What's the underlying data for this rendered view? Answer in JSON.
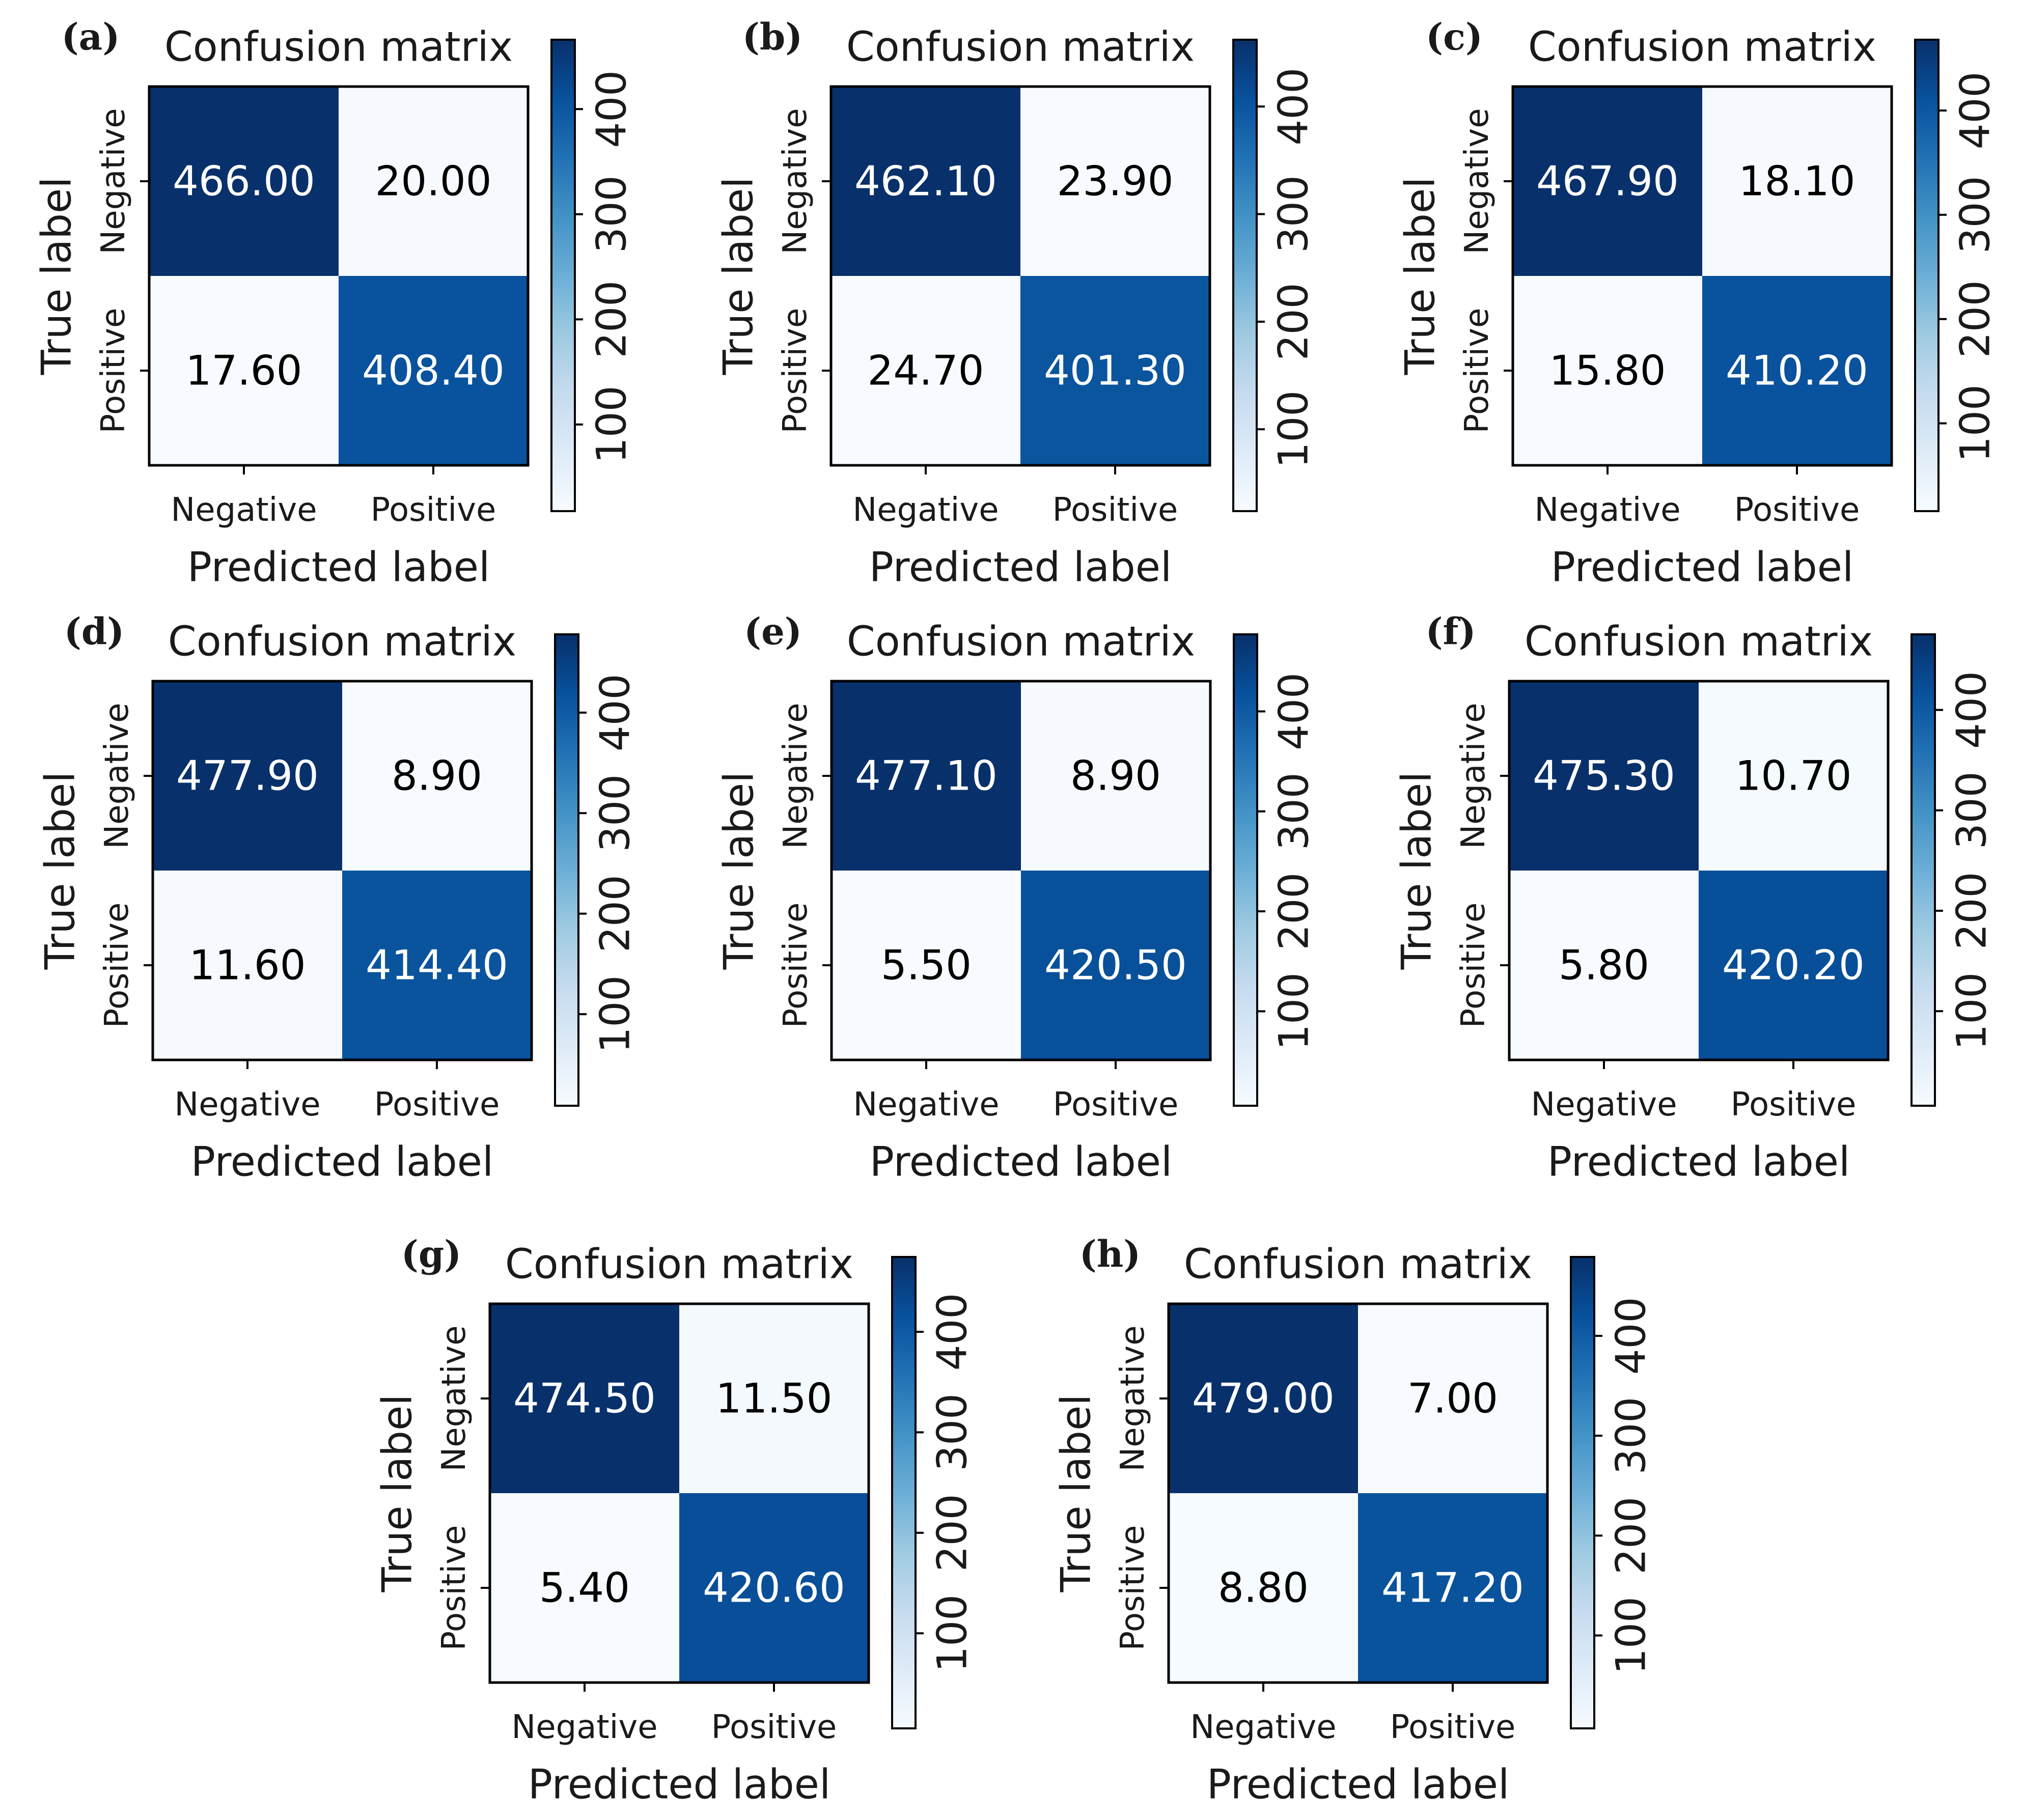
{
  "figure": {
    "colormap": [
      "#f7fbff",
      "#deebf7",
      "#c6dbef",
      "#9ecae1",
      "#6baed6",
      "#4292c6",
      "#2171b5",
      "#08519c",
      "#08306b"
    ]
  },
  "chart_data": [
    {
      "type": "heatmap",
      "panel": "(a)",
      "title": "Confusion matrix",
      "xlabel": "Predicted label",
      "ylabel": "True label",
      "x_categories": [
        "Negative",
        "Positive"
      ],
      "y_categories": [
        "Negative",
        "Positive"
      ],
      "matrix": [
        [
          466.0,
          20.0
        ],
        [
          17.6,
          408.4
        ]
      ],
      "cell_labels": [
        [
          "466.00",
          "20.00"
        ],
        [
          "17.60",
          "408.40"
        ]
      ],
      "colorbar": {
        "ticks": [
          100,
          200,
          300,
          400
        ],
        "tick_labels": [
          "100",
          "200",
          "300",
          "400"
        ],
        "range": [
          17.6,
          466.0
        ]
      }
    },
    {
      "type": "heatmap",
      "panel": "(b)",
      "title": "Confusion matrix",
      "xlabel": "Predicted label",
      "ylabel": "True label",
      "x_categories": [
        "Negative",
        "Positive"
      ],
      "y_categories": [
        "Negative",
        "Positive"
      ],
      "matrix": [
        [
          462.1,
          23.9
        ],
        [
          24.7,
          401.3
        ]
      ],
      "cell_labels": [
        [
          "462.10",
          "23.90"
        ],
        [
          "24.70",
          "401.30"
        ]
      ],
      "colorbar": {
        "ticks": [
          100,
          200,
          300,
          400
        ],
        "tick_labels": [
          "100",
          "200",
          "300",
          "400"
        ],
        "range": [
          23.9,
          462.1
        ]
      }
    },
    {
      "type": "heatmap",
      "panel": "(c)",
      "title": "Confusion matrix",
      "xlabel": "Predicted label",
      "ylabel": "True label",
      "x_categories": [
        "Negative",
        "Positive"
      ],
      "y_categories": [
        "Negative",
        "Positive"
      ],
      "matrix": [
        [
          467.9,
          18.1
        ],
        [
          15.8,
          410.2
        ]
      ],
      "cell_labels": [
        [
          "467.90",
          "18.10"
        ],
        [
          "15.80",
          "410.20"
        ]
      ],
      "colorbar": {
        "ticks": [
          100,
          200,
          300,
          400
        ],
        "tick_labels": [
          "100",
          "200",
          "300",
          "400"
        ],
        "range": [
          15.8,
          467.9
        ]
      }
    },
    {
      "type": "heatmap",
      "panel": "(d)",
      "title": "Confusion matrix",
      "xlabel": "Predicted label",
      "ylabel": "True label",
      "x_categories": [
        "Negative",
        "Positive"
      ],
      "y_categories": [
        "Negative",
        "Positive"
      ],
      "matrix": [
        [
          477.9,
          8.9
        ],
        [
          11.6,
          414.4
        ]
      ],
      "cell_labels": [
        [
          "477.90",
          "8.90"
        ],
        [
          "11.60",
          "414.40"
        ]
      ],
      "colorbar": {
        "ticks": [
          100,
          200,
          300,
          400
        ],
        "tick_labels": [
          "100",
          "200",
          "300",
          "400"
        ],
        "range": [
          8.9,
          477.9
        ]
      }
    },
    {
      "type": "heatmap",
      "panel": "(e)",
      "title": "Confusion matrix",
      "xlabel": "Predicted label",
      "ylabel": "True label",
      "x_categories": [
        "Negative",
        "Positive"
      ],
      "y_categories": [
        "Negative",
        "Positive"
      ],
      "matrix": [
        [
          477.1,
          8.9
        ],
        [
          5.5,
          420.5
        ]
      ],
      "cell_labels": [
        [
          "477.10",
          "8.90"
        ],
        [
          "5.50",
          "420.50"
        ]
      ],
      "colorbar": {
        "ticks": [
          100,
          200,
          300,
          400
        ],
        "tick_labels": [
          "100",
          "200",
          "300",
          "400"
        ],
        "range": [
          5.5,
          477.1
        ]
      }
    },
    {
      "type": "heatmap",
      "panel": "(f)",
      "title": "Confusion matrix",
      "xlabel": "Predicted label",
      "ylabel": "True label",
      "x_categories": [
        "Negative",
        "Positive"
      ],
      "y_categories": [
        "Negative",
        "Positive"
      ],
      "matrix": [
        [
          475.3,
          10.7
        ],
        [
          5.8,
          420.2
        ]
      ],
      "cell_labels": [
        [
          "475.30",
          "10.70"
        ],
        [
          "5.80",
          "420.20"
        ]
      ],
      "colorbar": {
        "ticks": [
          100,
          200,
          300,
          400
        ],
        "tick_labels": [
          "100",
          "200",
          "300",
          "400"
        ],
        "range": [
          5.8,
          475.3
        ]
      }
    },
    {
      "type": "heatmap",
      "panel": "(g)",
      "title": "Confusion matrix",
      "xlabel": "Predicted label",
      "ylabel": "True label",
      "x_categories": [
        "Negative",
        "Positive"
      ],
      "y_categories": [
        "Negative",
        "Positive"
      ],
      "matrix": [
        [
          474.5,
          11.5
        ],
        [
          5.4,
          420.6
        ]
      ],
      "cell_labels": [
        [
          "474.50",
          "11.50"
        ],
        [
          "5.40",
          "420.60"
        ]
      ],
      "colorbar": {
        "ticks": [
          100,
          200,
          300,
          400
        ],
        "tick_labels": [
          "100",
          "200",
          "300",
          "400"
        ],
        "range": [
          5.4,
          474.5
        ]
      }
    },
    {
      "type": "heatmap",
      "panel": "(h)",
      "title": "Confusion matrix",
      "xlabel": "Predicted label",
      "ylabel": "True label",
      "x_categories": [
        "Negative",
        "Positive"
      ],
      "y_categories": [
        "Negative",
        "Positive"
      ],
      "matrix": [
        [
          479.0,
          7.0
        ],
        [
          8.8,
          417.2
        ]
      ],
      "cell_labels": [
        [
          "479.00",
          "7.00"
        ],
        [
          "8.80",
          "417.20"
        ]
      ],
      "colorbar": {
        "ticks": [
          100,
          200,
          300,
          400
        ],
        "tick_labels": [
          "100",
          "200",
          "300",
          "400"
        ],
        "range": [
          7.0,
          479.0
        ]
      }
    }
  ]
}
